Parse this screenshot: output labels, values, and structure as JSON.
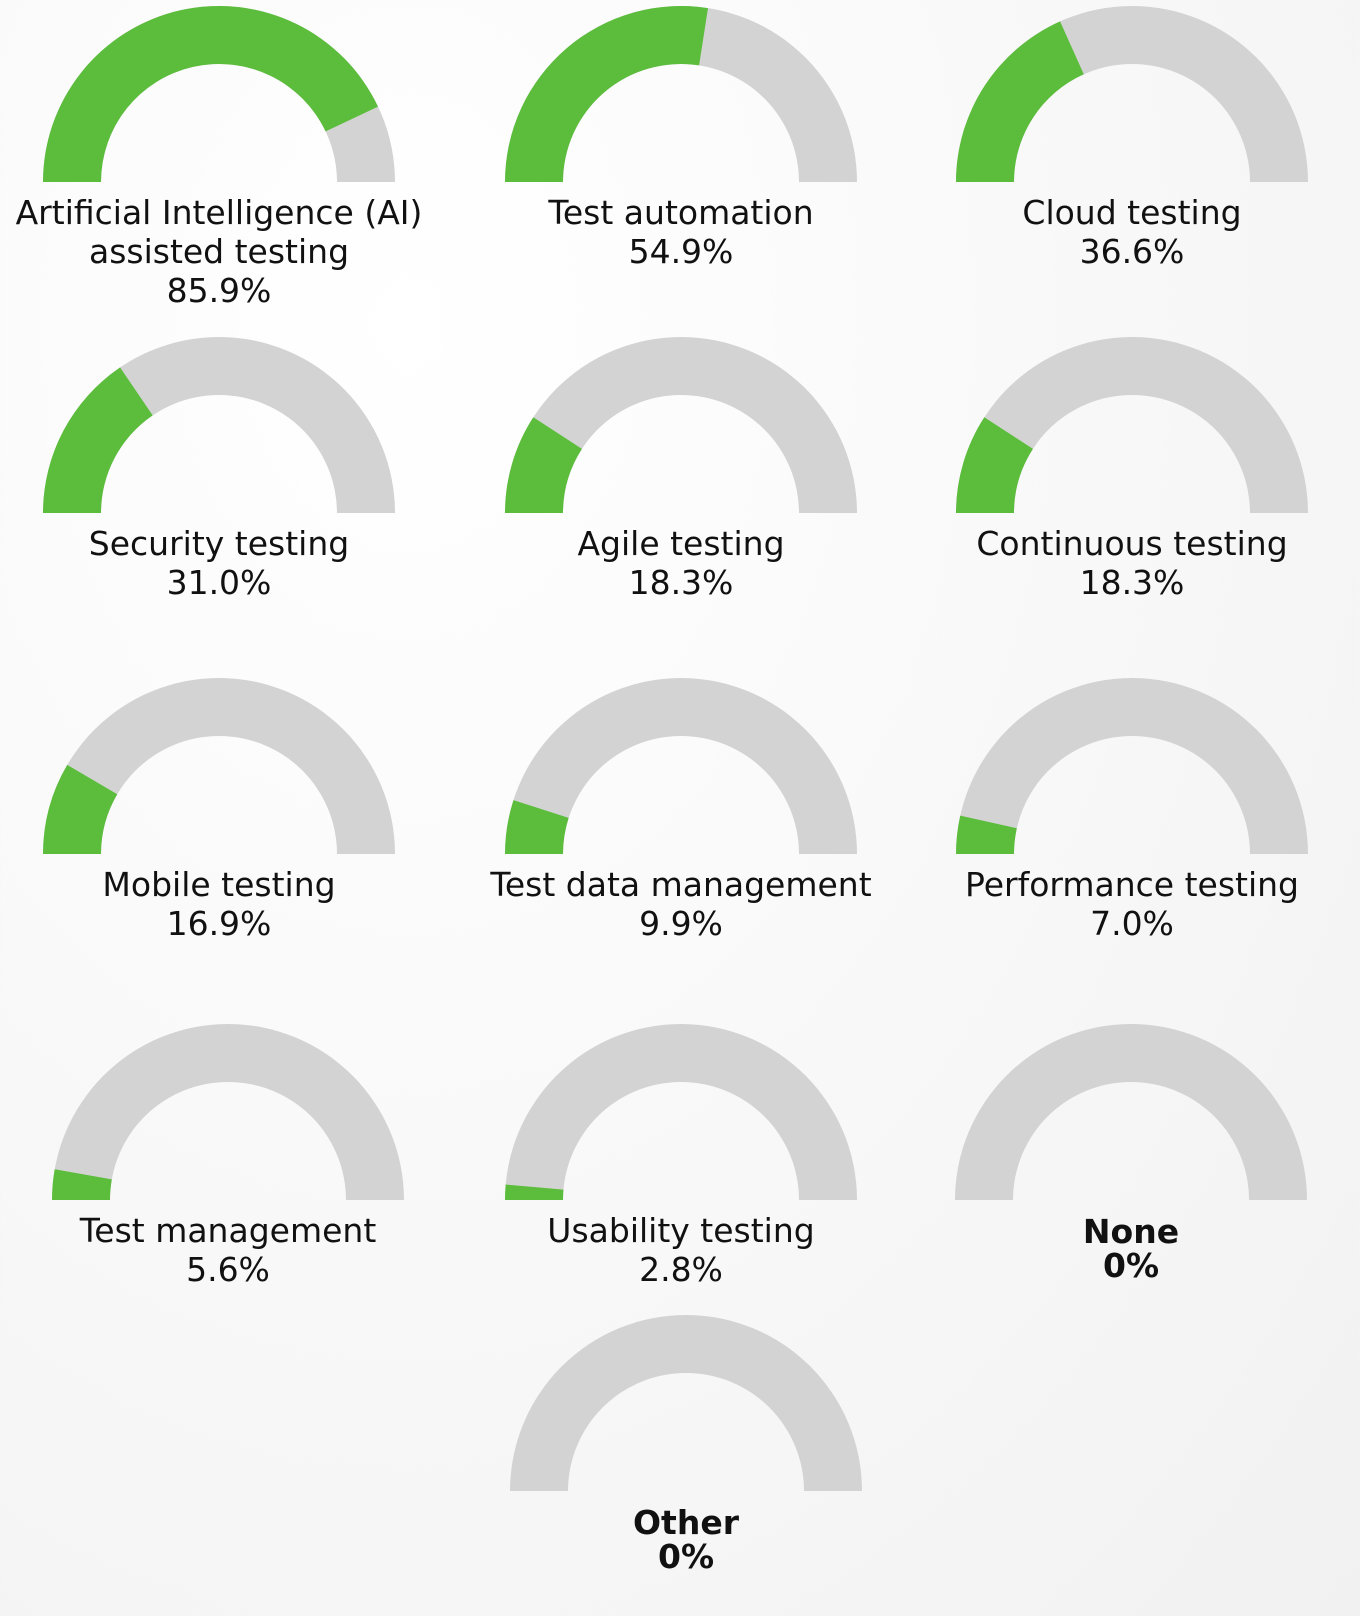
{
  "chart_data": [
    {
      "type": "gauge",
      "title": "Artificial Intelligence (AI) assisted testing",
      "values": [
        85.9
      ],
      "value_labels": [
        "85.9%"
      ],
      "ylim": [
        0,
        100
      ],
      "color": "#5bbd3b",
      "track_color": "#d3d3d3"
    },
    {
      "type": "gauge",
      "title": "Test automation",
      "values": [
        54.9
      ],
      "value_labels": [
        "54.9%"
      ],
      "ylim": [
        0,
        100
      ],
      "color": "#5bbd3b",
      "track_color": "#d3d3d3"
    },
    {
      "type": "gauge",
      "title": "Cloud testing",
      "values": [
        36.6
      ],
      "value_labels": [
        "36.6%"
      ],
      "ylim": [
        0,
        100
      ],
      "color": "#5bbd3b",
      "track_color": "#d3d3d3"
    },
    {
      "type": "gauge",
      "title": "Security testing",
      "values": [
        31.0
      ],
      "value_labels": [
        "31.0%"
      ],
      "ylim": [
        0,
        100
      ],
      "color": "#5bbd3b",
      "track_color": "#d3d3d3"
    },
    {
      "type": "gauge",
      "title": "Agile testing",
      "values": [
        18.3
      ],
      "value_labels": [
        "18.3%"
      ],
      "ylim": [
        0,
        100
      ],
      "color": "#5bbd3b",
      "track_color": "#d3d3d3"
    },
    {
      "type": "gauge",
      "title": "Continuous testing",
      "values": [
        18.3
      ],
      "value_labels": [
        "18.3%"
      ],
      "ylim": [
        0,
        100
      ],
      "color": "#5bbd3b",
      "track_color": "#d3d3d3"
    },
    {
      "type": "gauge",
      "title": "Mobile testing",
      "values": [
        16.9
      ],
      "value_labels": [
        "16.9%"
      ],
      "ylim": [
        0,
        100
      ],
      "color": "#5bbd3b",
      "track_color": "#d3d3d3"
    },
    {
      "type": "gauge",
      "title": "Test data management",
      "values": [
        9.9
      ],
      "value_labels": [
        "9.9%"
      ],
      "ylim": [
        0,
        100
      ],
      "color": "#5bbd3b",
      "track_color": "#d3d3d3"
    },
    {
      "type": "gauge",
      "title": "Performance testing",
      "values": [
        7.0
      ],
      "value_labels": [
        "7.0%"
      ],
      "ylim": [
        0,
        100
      ],
      "color": "#5bbd3b",
      "track_color": "#d3d3d3"
    },
    {
      "type": "gauge",
      "title": "Test management",
      "values": [
        5.6
      ],
      "value_labels": [
        "5.6%"
      ],
      "ylim": [
        0,
        100
      ],
      "color": "#5bbd3b",
      "track_color": "#d3d3d3"
    },
    {
      "type": "gauge",
      "title": "Usability testing",
      "values": [
        2.8
      ],
      "value_labels": [
        "2.8%"
      ],
      "ylim": [
        0,
        100
      ],
      "color": "#5bbd3b",
      "track_color": "#d3d3d3"
    },
    {
      "type": "gauge",
      "title": "None",
      "values": [
        0
      ],
      "value_labels": [
        "0%"
      ],
      "ylim": [
        0,
        100
      ],
      "color": "#5bbd3b",
      "track_color": "#d3d3d3",
      "label_weight": "bold"
    },
    {
      "type": "gauge",
      "title": "Other",
      "values": [
        0
      ],
      "value_labels": [
        "0%"
      ],
      "ylim": [
        0,
        100
      ],
      "color": "#5bbd3b",
      "track_color": "#d3d3d3",
      "label_weight": "bold"
    }
  ]
}
